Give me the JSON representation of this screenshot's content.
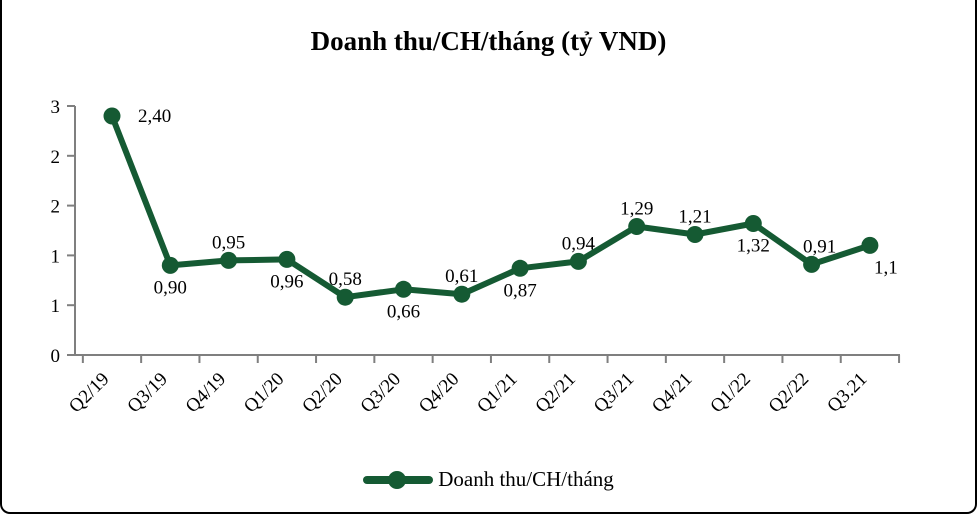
{
  "chart_data": {
    "type": "line",
    "title": "Doanh thu/CH/tháng (tỷ VND)",
    "categories": [
      "Q2/19",
      "Q3/19",
      "Q4/19",
      "Q1/20",
      "Q2/20",
      "Q3/20",
      "Q4/20",
      "Q1/21",
      "Q2/21",
      "Q3/21",
      "Q4/21",
      "Q1/22",
      "Q2/22",
      "Q3.21"
    ],
    "values": [
      2.4,
      0.9,
      0.95,
      0.96,
      0.58,
      0.66,
      0.61,
      0.87,
      0.94,
      1.29,
      1.21,
      1.32,
      0.91,
      1.1
    ],
    "point_labels": [
      "2,40",
      "0,90",
      "0,95",
      "0,96",
      "0,58",
      "0,66",
      "0,61",
      "0,87",
      "0,94",
      "1,29",
      "1,21",
      "1,32",
      "0,91",
      "1,1"
    ],
    "point_label_positions": [
      "right",
      "below",
      "above",
      "below",
      "above",
      "below",
      "above",
      "below",
      "above",
      "above",
      "above",
      "below",
      "above",
      "below"
    ],
    "point_label_dx": [
      26,
      0,
      0,
      0,
      0,
      0,
      0,
      0,
      0,
      0,
      0,
      0,
      8,
      16
    ],
    "ylim": [
      0,
      2.5
    ],
    "y_ticks": {
      "interval": 0.5,
      "display_labels_top_to_bottom": [
        "3",
        "2",
        "2",
        "1",
        "1",
        "0"
      ]
    },
    "x_tick_label_rotation_deg": 45,
    "grid": false,
    "decimal_separator": ",",
    "legend": {
      "position": "bottom",
      "label": "Doanh thu/CH/tháng"
    },
    "colors": {
      "line": "#155A33",
      "axis": "#7F7F7F",
      "text": "#000000"
    }
  }
}
